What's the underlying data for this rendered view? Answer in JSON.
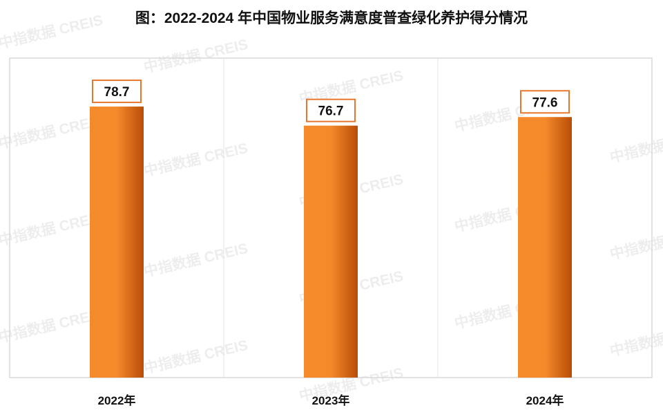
{
  "chart_data": {
    "type": "bar",
    "title": "图：2022-2024 年中国物业服务满意度普查绿化养护得分情况",
    "categories": [
      "2022年",
      "2023年",
      "2024年"
    ],
    "values": [
      78.7,
      76.7,
      77.6
    ],
    "xlabel": "",
    "ylabel": "",
    "ylim": [
      50.3,
      80
    ],
    "grid": false,
    "legend": "none"
  },
  "watermark_text": "中指数据 CREIS",
  "colors": {
    "bar_light": "#f58a2b",
    "bar_dark": "#b84d08",
    "label_border": "#e8762c",
    "frame": "#d8d8d8",
    "divider": "#e6e6e6"
  }
}
